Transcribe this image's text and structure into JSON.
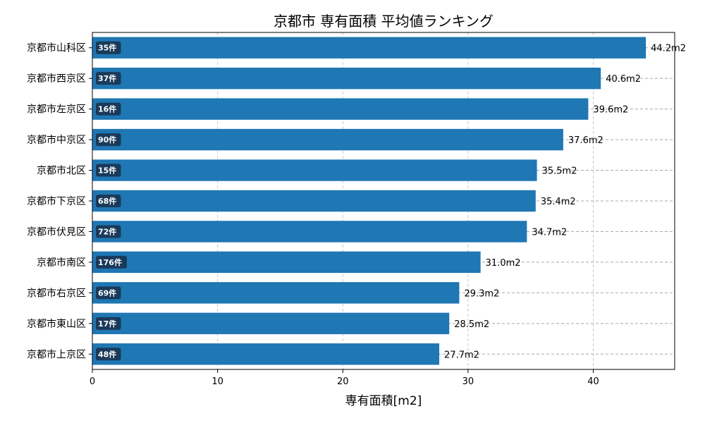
{
  "chart_data": {
    "type": "bar",
    "orientation": "horizontal",
    "title": "京都市 専有面積 平均値ランキング",
    "xlabel": "専有面積[m2]",
    "ylabel": "",
    "xlim": [
      0,
      46.5
    ],
    "xticks": [
      0,
      10,
      20,
      30,
      40
    ],
    "grid": true,
    "categories": [
      "京都市山科区",
      "京都市西京区",
      "京都市左京区",
      "京都市中京区",
      "京都市北区",
      "京都市下京区",
      "京都市伏見区",
      "京都市南区",
      "京都市右京区",
      "京都市東山区",
      "京都市上京区"
    ],
    "values": [
      44.2,
      40.6,
      39.6,
      37.6,
      35.5,
      35.4,
      34.7,
      31.0,
      29.3,
      28.5,
      27.7
    ],
    "value_labels": [
      "44.2m2",
      "40.6m2",
      "39.6m2",
      "37.6m2",
      "35.5m2",
      "35.4m2",
      "34.7m2",
      "31.0m2",
      "29.3m2",
      "28.5m2",
      "27.7m2"
    ],
    "counts": [
      "35件",
      "37件",
      "16件",
      "90件",
      "15件",
      "68件",
      "72件",
      "176件",
      "69件",
      "17件",
      "48件"
    ],
    "bar_color": "#1f77b4",
    "count_badge_color": "#1a3a5a"
  }
}
